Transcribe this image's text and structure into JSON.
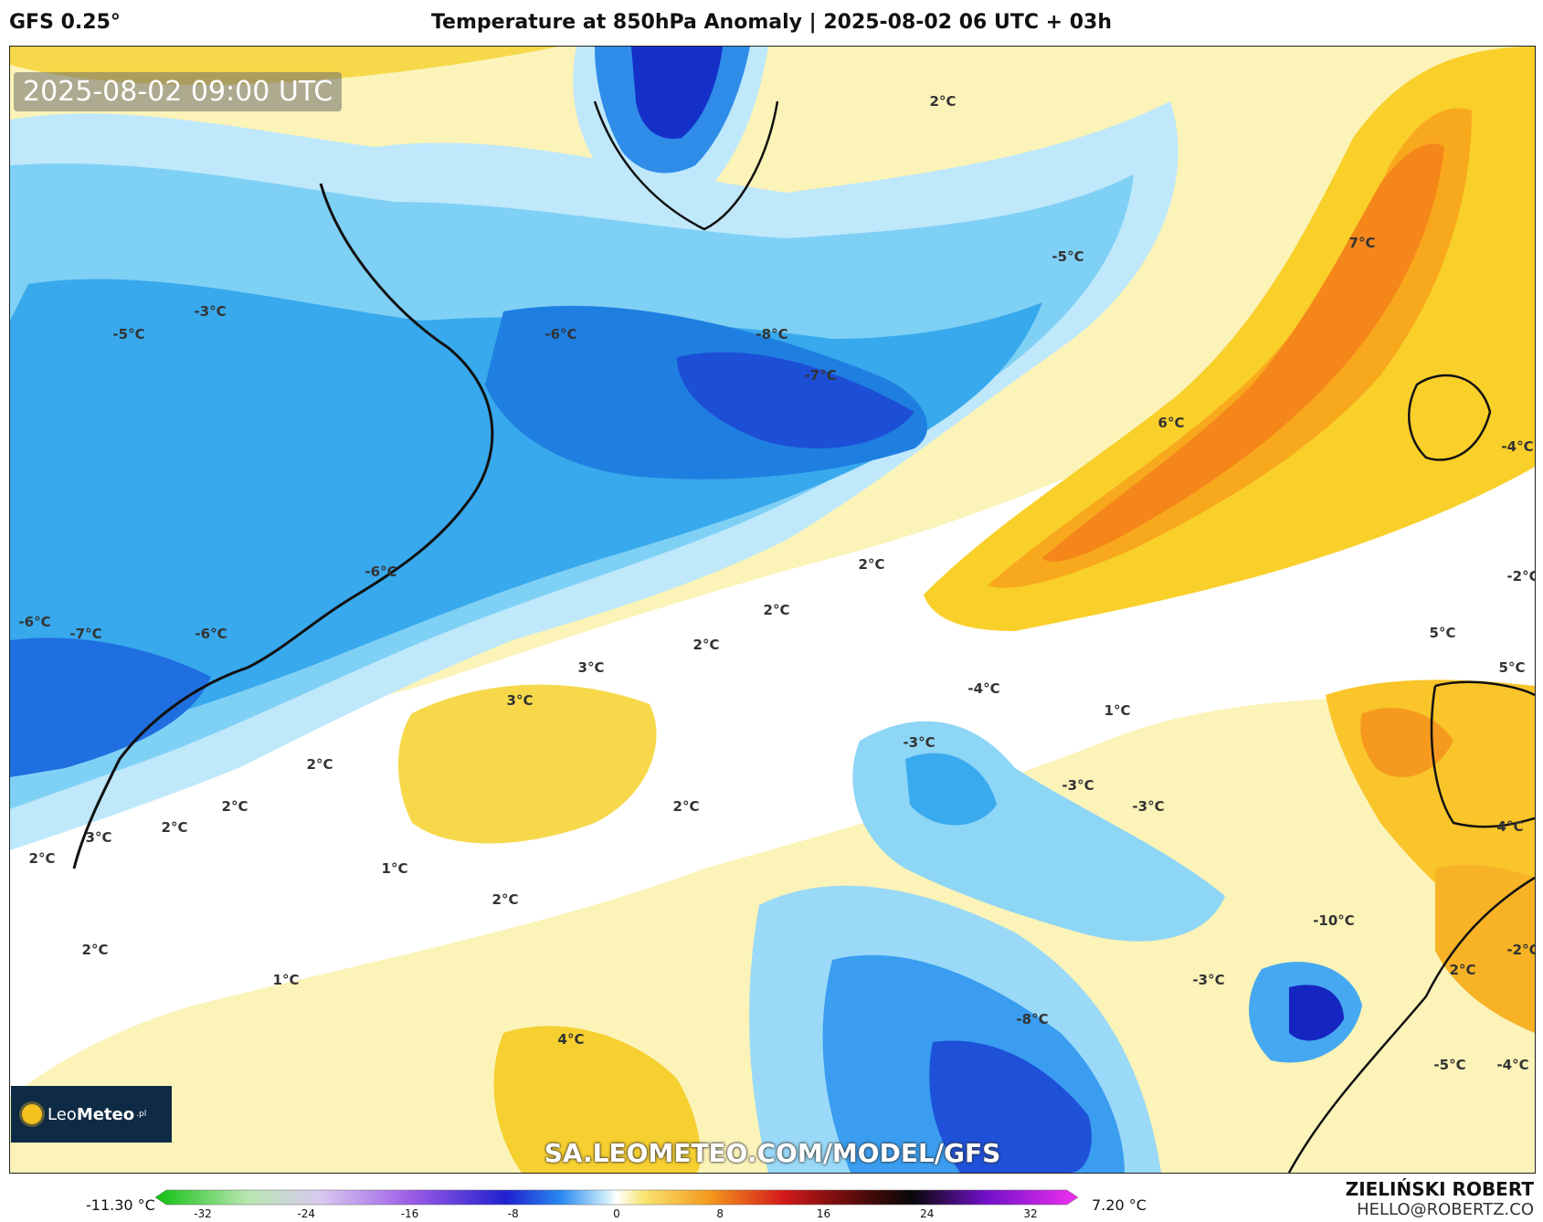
{
  "header": {
    "model": "GFS 0.25°",
    "title": "Temperature at 850hPa Anomaly | 2025-08-02 06 UTC + 03h"
  },
  "map": {
    "valid_time": "2025-08-02 09:00 UTC",
    "watermark": "SA.LEOMETEO.COM/MODEL/GFS",
    "labels": [
      {
        "text": "2°C"
      },
      {
        "text": "-3°C"
      },
      {
        "text": "-5°C"
      },
      {
        "text": "-6°C"
      },
      {
        "text": "-8°C"
      },
      {
        "text": "-7°C"
      },
      {
        "text": "-5°C"
      },
      {
        "text": "7°C"
      },
      {
        "text": "6°C"
      },
      {
        "text": "-4°C"
      },
      {
        "text": "-6°C"
      },
      {
        "text": "2°C"
      },
      {
        "text": "-2°C"
      },
      {
        "text": "2°C"
      },
      {
        "text": "2°C"
      },
      {
        "text": "-6°C"
      },
      {
        "text": "-7°C"
      },
      {
        "text": "-6°C"
      },
      {
        "text": "3°C"
      },
      {
        "text": "3°C"
      },
      {
        "text": "5°C"
      },
      {
        "text": "5°C"
      },
      {
        "text": "-4°C"
      },
      {
        "text": "1°C"
      },
      {
        "text": "-3°C"
      },
      {
        "text": "-3°C"
      },
      {
        "text": "-3°C"
      },
      {
        "text": "2°C"
      },
      {
        "text": "2°C"
      },
      {
        "text": "2°C"
      },
      {
        "text": "2°C"
      },
      {
        "text": "3°C"
      },
      {
        "text": "2°C"
      },
      {
        "text": "4°C"
      },
      {
        "text": "1°C"
      },
      {
        "text": "2°C"
      },
      {
        "text": "-10°C"
      },
      {
        "text": "2°C"
      },
      {
        "text": "-2°C"
      },
      {
        "text": "1°C"
      },
      {
        "text": "-3°C"
      },
      {
        "text": "-8°C"
      },
      {
        "text": "4°C"
      },
      {
        "text": "-5°C"
      },
      {
        "text": "-4°C"
      },
      {
        "text": "2°C"
      }
    ]
  },
  "logo": {
    "brand_light": "Leo",
    "brand_bold": "Meteo",
    "suffix": ".pl"
  },
  "colorbar": {
    "min_label": "-11.30 °C",
    "max_label": "7.20 °C",
    "ticks": [
      "-32",
      "-24",
      "-16",
      "-8",
      "0",
      "8",
      "16",
      "24",
      "32"
    ]
  },
  "author": {
    "name": "ZIELIŃSKI ROBERT",
    "email": "HELLO@ROBERTZ.CO"
  }
}
